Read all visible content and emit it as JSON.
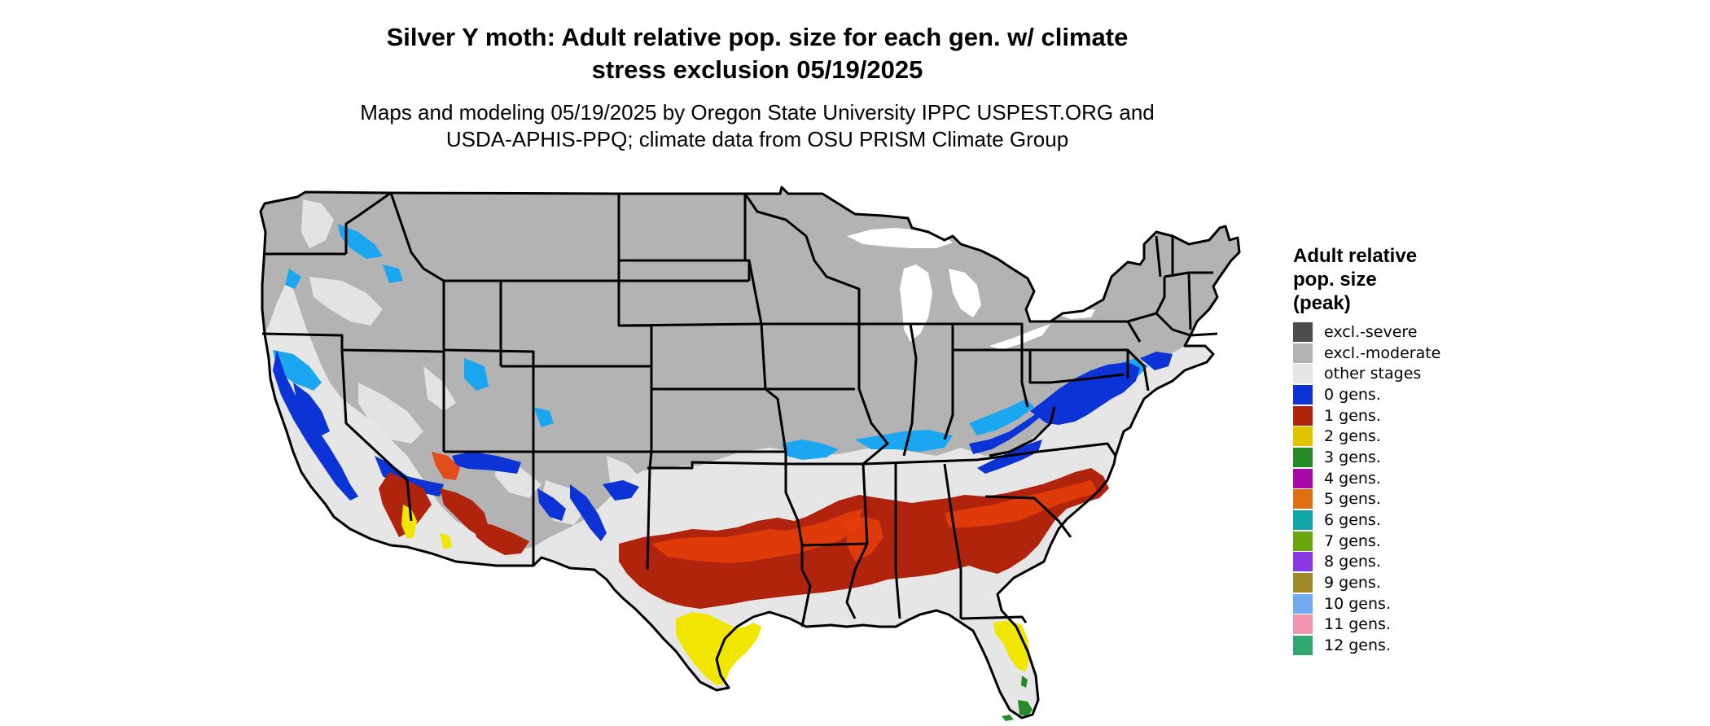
{
  "title": {
    "line1": "Silver Y moth: Adult relative pop. size for each gen. w/ climate",
    "line2": "stress exclusion 05/19/2025"
  },
  "subtitle": {
    "line1": "Maps and modeling 05/19/2025 by Oregon State University IPPC USPEST.ORG and",
    "line2": "USDA-APHIS-PPQ; climate data from OSU PRISM Climate Group"
  },
  "legend": {
    "title_line1": "Adult relative",
    "title_line2": "pop. size",
    "title_line3": "(peak)",
    "items": [
      {
        "label": "excl.-severe",
        "color": "#4d4d4d"
      },
      {
        "label": "excl.-moderate",
        "color": "#b3b3b3"
      },
      {
        "label": "other stages",
        "color": "#e6e6e6"
      },
      {
        "label": "0 gens.",
        "color": "#0b33d6"
      },
      {
        "label": "1 gens.",
        "color": "#b0230c"
      },
      {
        "label": "2 gens.",
        "color": "#e0c400"
      },
      {
        "label": "3 gens.",
        "color": "#268a26"
      },
      {
        "label": "4 gens.",
        "color": "#a80aa8"
      },
      {
        "label": "5 gens.",
        "color": "#e07010"
      },
      {
        "label": "6 gens.",
        "color": "#10a6a6"
      },
      {
        "label": "7 gens.",
        "color": "#6aa610"
      },
      {
        "label": "8 gens.",
        "color": "#8a3ae0"
      },
      {
        "label": "9 gens.",
        "color": "#9e8a26"
      },
      {
        "label": "10 gens.",
        "color": "#70aaf0"
      },
      {
        "label": "11 gens.",
        "color": "#f095b0"
      },
      {
        "label": "12 gens.",
        "color": "#30a870"
      }
    ]
  },
  "map_colors": {
    "excluded_moderate": "#b3b3b3",
    "other_stages": "#e6e6e6",
    "zero_gens": "#0b33d6",
    "zero_gens_light": "#1aa6f0",
    "one_gen": "#b0230c",
    "one_gen_bright": "#e8400a",
    "two_gens": "#f0e600",
    "three_gens": "#268a26",
    "border": "#000000",
    "lakes": "#ffffff"
  }
}
